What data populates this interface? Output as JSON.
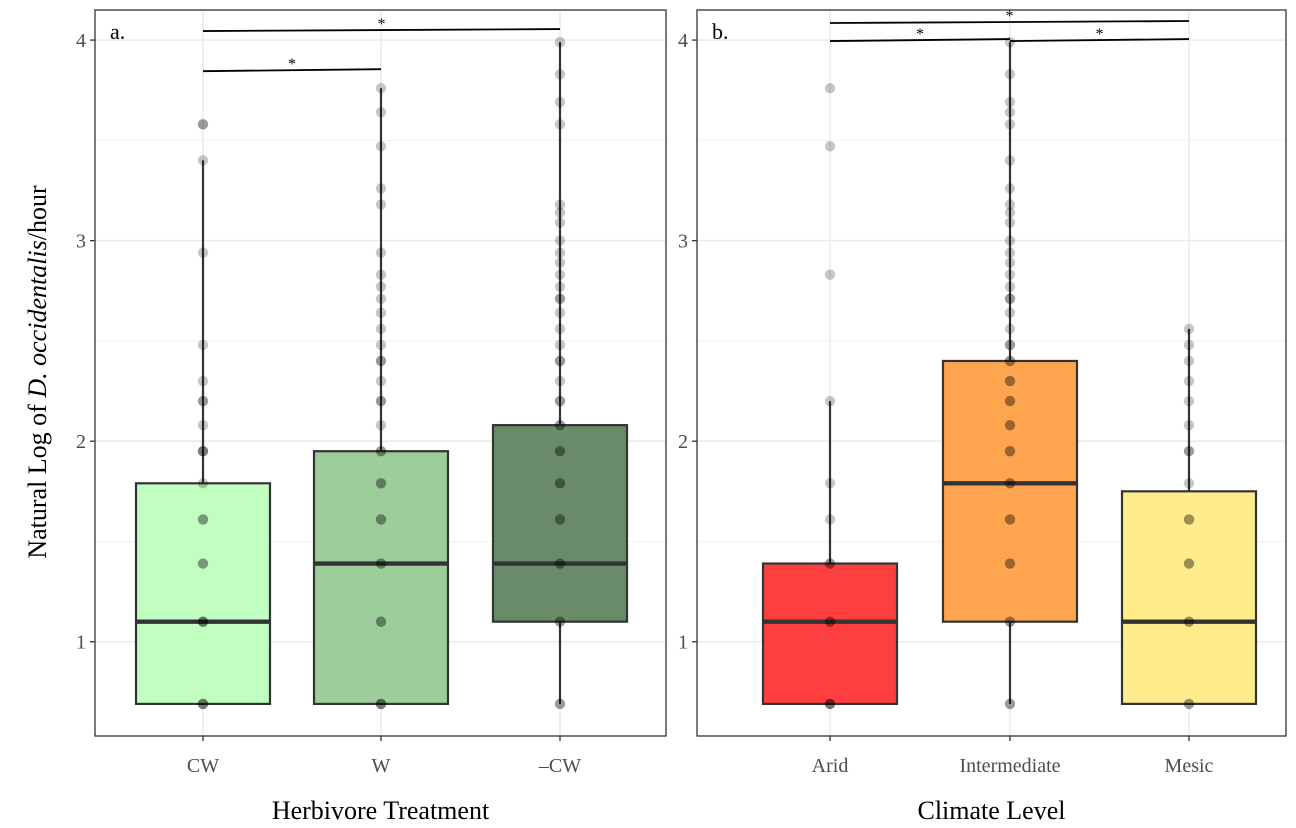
{
  "figure": {
    "y_axis_title": {
      "before": "Natural Log of ",
      "italic": "D. occidentalis",
      "after": "/hour"
    }
  },
  "chart_data": [
    {
      "type": "box",
      "panel_label": "a.",
      "xlabel": "Herbivore Treatment",
      "ylabel": "Natural Log of D. occidentalis/hour",
      "categories": [
        "CW",
        "W",
        "–CW"
      ],
      "ylim": [
        0.53,
        4.15
      ],
      "yticks": [
        1,
        2,
        3,
        4
      ],
      "grid": true,
      "legend": "none",
      "boxes": [
        {
          "category": "CW",
          "fill": "#c1ffc1",
          "q1": 0.69,
          "median": 1.1,
          "q3": 1.79,
          "whisker_low": 0.69,
          "whisker_high": 3.4
        },
        {
          "category": "W",
          "fill": "#9ccd9b",
          "q1": 0.69,
          "median": 1.39,
          "q3": 1.95,
          "whisker_low": 0.69,
          "whisker_high": 3.76
        },
        {
          "category": "–CW",
          "fill": "#698b69",
          "q1": 1.1,
          "median": 1.39,
          "q3": 2.08,
          "whisker_low": 0.69,
          "whisker_high": 3.99
        }
      ],
      "points": [
        {
          "category": "CW",
          "y": [
            0.69,
            0.69,
            0.69,
            1.1,
            1.1,
            1.1,
            1.39,
            1.39,
            1.61,
            1.61,
            1.79,
            1.95,
            1.95,
            1.95,
            2.08,
            2.2,
            2.2,
            2.3,
            2.48,
            2.94,
            3.4,
            3.58,
            3.58
          ]
        },
        {
          "category": "W",
          "y": [
            0.69,
            0.69,
            0.69,
            1.1,
            1.1,
            1.39,
            1.39,
            1.61,
            1.61,
            1.79,
            1.79,
            1.95,
            1.95,
            2.08,
            2.2,
            2.2,
            2.3,
            2.4,
            2.4,
            2.48,
            2.56,
            2.64,
            2.71,
            2.77,
            2.83,
            2.94,
            3.18,
            3.26,
            3.47,
            3.64,
            3.76
          ]
        },
        {
          "category": "–CW",
          "y": [
            0.69,
            0.69,
            1.1,
            1.1,
            1.39,
            1.39,
            1.61,
            1.61,
            1.79,
            1.79,
            1.95,
            1.95,
            2.08,
            2.08,
            2.2,
            2.2,
            2.3,
            2.4,
            2.4,
            2.48,
            2.56,
            2.64,
            2.71,
            2.71,
            2.77,
            2.83,
            2.89,
            2.94,
            3.0,
            3.09,
            3.14,
            3.18,
            3.58,
            3.69,
            3.83,
            3.99
          ]
        }
      ],
      "significance": [
        {
          "from": "CW",
          "to": "–CW",
          "y": 4.05,
          "label": "*"
        },
        {
          "from": "CW",
          "to": "W",
          "y": 3.85,
          "label": "*"
        }
      ]
    },
    {
      "type": "box",
      "panel_label": "b.",
      "xlabel": "Climate Level",
      "ylabel": "",
      "categories": [
        "Arid",
        "Intermediate",
        "Mesic"
      ],
      "ylim": [
        0.53,
        4.15
      ],
      "yticks": [
        1,
        2,
        3,
        4
      ],
      "grid": true,
      "legend": "none",
      "boxes": [
        {
          "category": "Arid",
          "fill": "#ff3f3f",
          "q1": 0.69,
          "median": 1.1,
          "q3": 1.39,
          "whisker_low": 0.69,
          "whisker_high": 2.2
        },
        {
          "category": "Intermediate",
          "fill": "#ffa54f",
          "q1": 1.1,
          "median": 1.79,
          "q3": 2.4,
          "whisker_low": 0.69,
          "whisker_high": 3.99
        },
        {
          "category": "Mesic",
          "fill": "#ffec8b",
          "q1": 0.69,
          "median": 1.1,
          "q3": 1.75,
          "whisker_low": 0.69,
          "whisker_high": 2.56
        }
      ],
      "points": [
        {
          "category": "Arid",
          "y": [
            0.69,
            0.69,
            0.69,
            1.1,
            1.1,
            1.39,
            1.39,
            1.61,
            1.79,
            2.2,
            2.83,
            3.47,
            3.76
          ]
        },
        {
          "category": "Intermediate",
          "y": [
            0.69,
            0.69,
            1.1,
            1.1,
            1.39,
            1.39,
            1.61,
            1.61,
            1.79,
            1.79,
            1.95,
            1.95,
            2.08,
            2.08,
            2.2,
            2.2,
            2.3,
            2.3,
            2.4,
            2.4,
            2.48,
            2.48,
            2.56,
            2.64,
            2.71,
            2.71,
            2.77,
            2.83,
            2.89,
            2.94,
            3.0,
            3.09,
            3.14,
            3.18,
            3.26,
            3.4,
            3.58,
            3.64,
            3.69,
            3.83,
            3.99
          ]
        },
        {
          "category": "Mesic",
          "y": [
            0.69,
            0.69,
            1.1,
            1.1,
            1.39,
            1.39,
            1.61,
            1.61,
            1.79,
            1.95,
            1.95,
            2.08,
            2.2,
            2.3,
            2.4,
            2.48,
            2.56
          ]
        }
      ],
      "significance": [
        {
          "from": "Arid",
          "to": "Mesic",
          "y": 4.09,
          "label": "*"
        },
        {
          "from": "Arid",
          "to": "Intermediate",
          "y": 4.0,
          "label": "*"
        },
        {
          "from": "Intermediate",
          "to": "Mesic",
          "y": 4.0,
          "label": "*"
        }
      ]
    }
  ]
}
